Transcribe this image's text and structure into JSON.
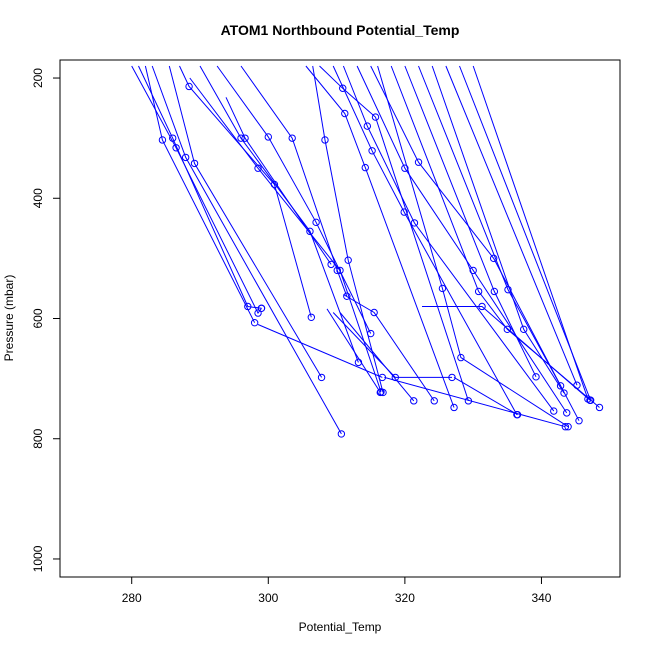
{
  "chart_data": {
    "type": "line",
    "title": "ATOM1 Northbound Potential_Temp",
    "xlabel": "Potential_Temp",
    "ylabel": "Pressure (mbar)",
    "xlim": [
      269.5,
      351.5
    ],
    "ylim": [
      1030,
      170
    ],
    "y_reversed": true,
    "x_ticks": [
      280,
      300,
      320,
      340
    ],
    "y_ticks": [
      200,
      400,
      600,
      800,
      1000
    ],
    "grid": false,
    "line_color": "#0000ff",
    "marker": "open-circle",
    "series": [
      {
        "x": [
          280,
          286.5,
          298.5,
          299
        ],
        "y": [
          180,
          316,
          591,
          583
        ]
      },
      {
        "x": [
          282,
          284.5,
          298,
          298
        ],
        "y": [
          180,
          303,
          607,
          607
        ]
      },
      {
        "x": [
          281,
          286,
          297,
          299
        ],
        "y": [
          180,
          300,
          580,
          583
        ]
      },
      {
        "x": [
          283,
          287.9,
          310.7,
          310.7
        ],
        "y": [
          180,
          332,
          792,
          792
        ]
      },
      {
        "x": [
          285.5,
          289.2,
          307.8,
          307.8
        ],
        "y": [
          180,
          342,
          698,
          698
        ]
      },
      {
        "x": [
          287,
          288.4,
          300.9,
          306.3,
          306.3
        ],
        "y": [
          180,
          214,
          377,
          598,
          598
        ]
      },
      {
        "x": [
          290,
          296,
          306.1,
          313.2,
          313.2
        ],
        "y": [
          180,
          300,
          455,
          673,
          673
        ]
      },
      {
        "x": [
          292.5,
          300,
          307,
          315,
          315
        ],
        "y": [
          180,
          298,
          440,
          625,
          625
        ]
      },
      {
        "x": [
          293.8,
          296.6,
          309.2,
          309.2
        ],
        "y": [
          232,
          300,
          510,
          510
        ]
      },
      {
        "x": [
          288.5,
          298.5,
          310.5,
          316.5,
          316.5
        ],
        "y": [
          200,
          350,
          520,
          722,
          722
        ]
      },
      {
        "x": [
          296,
          303.5,
          310.1,
          311.5,
          311.5
        ],
        "y": [
          180,
          300,
          520,
          563,
          563
        ]
      },
      {
        "x": [
          306.5,
          308.3,
          311.7,
          316.8,
          316.8
        ],
        "y": [
          180,
          303,
          503,
          723,
          723
        ]
      },
      {
        "x": [
          298.5,
          316.7,
          316.7
        ],
        "y": [
          610,
          698,
          698
        ]
      },
      {
        "x": [
          308.6,
          316.4,
          316.4
        ],
        "y": [
          584,
          723,
          723
        ]
      },
      {
        "x": [
          309.5,
          318.6,
          326.9,
          326.9
        ],
        "y": [
          590,
          698,
          698,
          698
        ]
      },
      {
        "x": [
          310.5,
          321.3,
          321.3
        ],
        "y": [
          590,
          737,
          737
        ]
      },
      {
        "x": [
          311,
          315.5,
          324.3,
          324.3
        ],
        "y": [
          560,
          590,
          737,
          737
        ]
      },
      {
        "x": [
          305.5,
          311.2,
          314.2,
          327.2,
          327.2
        ],
        "y": [
          180,
          259,
          349,
          748,
          748
        ]
      },
      {
        "x": [
          307.5,
          310.9,
          315.7,
          329.3,
          329.3
        ],
        "y": [
          180,
          217,
          265,
          737,
          737
        ]
      },
      {
        "x": [
          309.5,
          315.2,
          319.9,
          336.4,
          336.4
        ],
        "y": [
          180,
          321,
          423,
          760,
          760
        ]
      },
      {
        "x": [
          311,
          314.5,
          321.4,
          341.8,
          341.8
        ],
        "y": [
          180,
          280,
          441,
          754,
          754
        ]
      },
      {
        "x": [
          313,
          320,
          330,
          343.7,
          343.7
        ],
        "y": [
          180,
          350,
          520,
          757,
          757
        ]
      },
      {
        "x": [
          315,
          322,
          333,
          345.5,
          345.5
        ],
        "y": [
          180,
          340,
          500,
          770,
          770
        ]
      },
      {
        "x": [
          316,
          325.5,
          328.2,
          343.9,
          343.9
        ],
        "y": [
          180,
          550,
          665,
          780,
          780
        ]
      },
      {
        "x": [
          322.5,
          331.3,
          347.1,
          347.1
        ],
        "y": [
          580,
          580,
          736,
          736
        ]
      },
      {
        "x": [
          318,
          330.8,
          335,
          348.5,
          348.5
        ],
        "y": [
          180,
          555,
          618,
          748,
          748
        ]
      },
      {
        "x": [
          320,
          333.1,
          339.2,
          339.2
        ],
        "y": [
          180,
          555,
          697,
          697
        ]
      },
      {
        "x": [
          322,
          335.1,
          342.8,
          342.8
        ],
        "y": [
          180,
          552,
          712,
          712
        ]
      },
      {
        "x": [
          324,
          337.4,
          343.3,
          343.3
        ],
        "y": [
          180,
          618,
          724,
          724
        ]
      },
      {
        "x": [
          326,
          345.2,
          345.2
        ],
        "y": [
          180,
          711,
          711
        ]
      },
      {
        "x": [
          328,
          347.2,
          347.2
        ],
        "y": [
          180,
          736,
          736
        ]
      },
      {
        "x": [
          330,
          346.8,
          346.8
        ],
        "y": [
          180,
          734,
          734
        ]
      },
      {
        "x": [
          327.2,
          336.5
        ],
        "y": [
          698,
          760
        ]
      },
      {
        "x": [
          317,
          343.5
        ],
        "y": [
          698,
          780
        ]
      }
    ]
  }
}
